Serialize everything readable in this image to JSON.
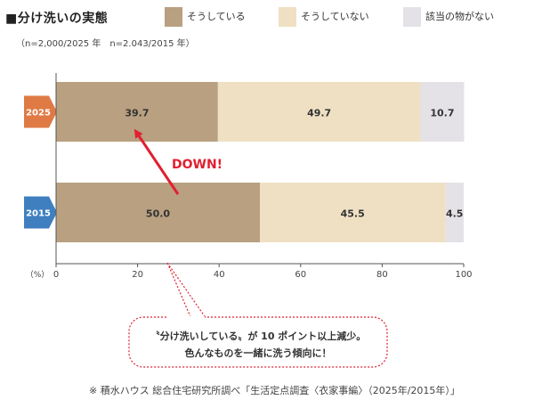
{
  "header": {
    "title": "■分け洗いの実態",
    "sample_note": "（n=2,000/2025 年　n=2.043/2015 年）"
  },
  "legend": [
    {
      "label": "そうしている",
      "color": "#b8a080"
    },
    {
      "label": "そうしていない",
      "color": "#efe0c4"
    },
    {
      "label": "該当の物がない",
      "color": "#e4e2e6"
    }
  ],
  "chart_data": {
    "type": "bar",
    "orientation": "horizontal",
    "stacked": true,
    "categories": [
      "2025",
      "2015"
    ],
    "category_colors": [
      "#e07a45",
      "#3f7fc0"
    ],
    "series": [
      {
        "name": "そうしている",
        "values": [
          39.7,
          50.0
        ],
        "labels": [
          "39.7",
          "50.0"
        ],
        "color": "#b8a080"
      },
      {
        "name": "そうしていない",
        "values": [
          49.7,
          45.5
        ],
        "labels": [
          "49.7",
          "45.5"
        ],
        "color": "#efe0c4"
      },
      {
        "name": "該当の物がない",
        "values": [
          10.7,
          4.5
        ],
        "labels": [
          "10.7",
          "4.5"
        ],
        "color": "#e4e2e6"
      }
    ],
    "xlim": [
      0,
      100
    ],
    "xticks": [
      0,
      20,
      40,
      60,
      80,
      100
    ],
    "xtick_labels": [
      "0",
      "20",
      "40",
      "60",
      "80",
      "100"
    ],
    "unit_label": "（%）",
    "annotation": "DOWN!",
    "annotation_color": "#e02030"
  },
  "callout": {
    "line1": "〝分け洗いしている〟が 10 ポイント以上減少。",
    "line2": "色んなものを一緒に洗う傾向に！"
  },
  "source": "※ 積水ハウス 総合住宅研究所調べ「生活定点調査〈衣家事編〉（2025年/2015年）」"
}
